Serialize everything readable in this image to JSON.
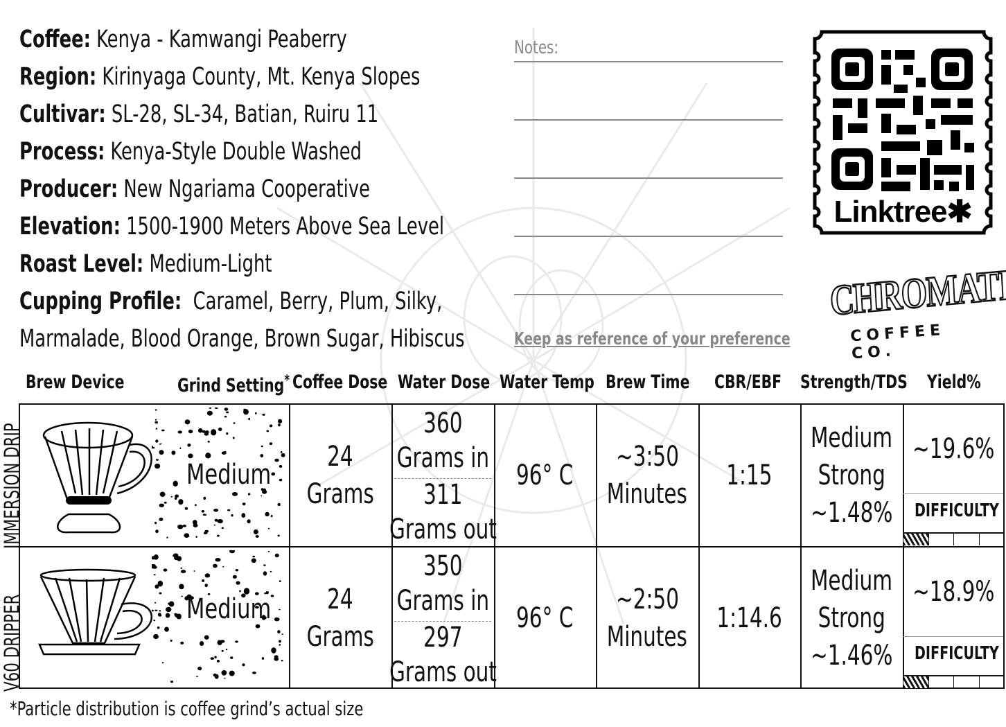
{
  "info": {
    "coffee": {
      "label": "Coffee:",
      "value": "Kenya - Kamwangi Peaberry"
    },
    "region": {
      "label": "Region:",
      "value": "Kirinyaga County, Mt. Kenya Slopes"
    },
    "cultivar": {
      "label": "Cultivar:",
      "value": "SL-28, SL-34, Batian, Ruiru 11"
    },
    "process": {
      "label": "Process:",
      "value": "Kenya-Style Double Washed"
    },
    "producer": {
      "label": "Producer:",
      "value": "New Ngariama Cooperative"
    },
    "elevation": {
      "label": "Elevation:",
      "value": "1500-1900 Meters Above Sea Level"
    },
    "roast": {
      "label": "Roast Level:",
      "value": "Medium-Light"
    },
    "cupping": {
      "label": "Cupping Profile:",
      "value": "Caramel, Berry, Plum, Silky,"
    },
    "cupping_cont": "Marmalade, Blood Orange, Brown Sugar, Hibiscus"
  },
  "notes": {
    "label": "Notes:",
    "reference": "Keep as reference of your preference"
  },
  "qr": {
    "brand": "Linktree✱"
  },
  "logo": {
    "main": "CHROMATIC",
    "sub": "COFFEE CO."
  },
  "headers": {
    "device": "Brew  Device",
    "grind": "Grind Setting",
    "grind_mark": "*",
    "dose": "Coffee Dose",
    "water": "Water Dose",
    "temp": "Water Temp",
    "time": "Brew Time",
    "ratio": "CBR/EBF",
    "strength": "Strength/TDS",
    "yield": "Yield%"
  },
  "rows": [
    {
      "device": "IMMERSION DRIP",
      "grind": "Medium",
      "dose_amount": "24",
      "dose_unit": "Grams",
      "water_in_amount": "360",
      "water_in_unit": "Grams in",
      "water_out_amount": "311",
      "water_out_unit": "Grams out",
      "temp": "96° C",
      "time_amount": "~3:50",
      "time_unit": "Minutes",
      "ratio": "1:15",
      "strength_1": "Medium",
      "strength_2": "Strong",
      "tds": "~1.48%",
      "yield": "~19.6%",
      "difficulty_label": "DIFFICULTY",
      "difficulty_level": 1,
      "difficulty_max": 4
    },
    {
      "device": "V60 DRIPPER",
      "grind": "Medium",
      "dose_amount": "24",
      "dose_unit": "Grams",
      "water_in_amount": "350",
      "water_in_unit": "Grams in",
      "water_out_amount": "297",
      "water_out_unit": "Grams out",
      "temp": "96° C",
      "time_amount": "~2:50",
      "time_unit": "Minutes",
      "ratio": "1:14.6",
      "strength_1": "Medium",
      "strength_2": "Strong",
      "tds": "~1.46%",
      "yield": "~18.9%",
      "difficulty_label": "DIFFICULTY",
      "difficulty_level": 1,
      "difficulty_max": 4
    }
  ],
  "footnote": "*Particle distribution is coffee grind’s actual size"
}
